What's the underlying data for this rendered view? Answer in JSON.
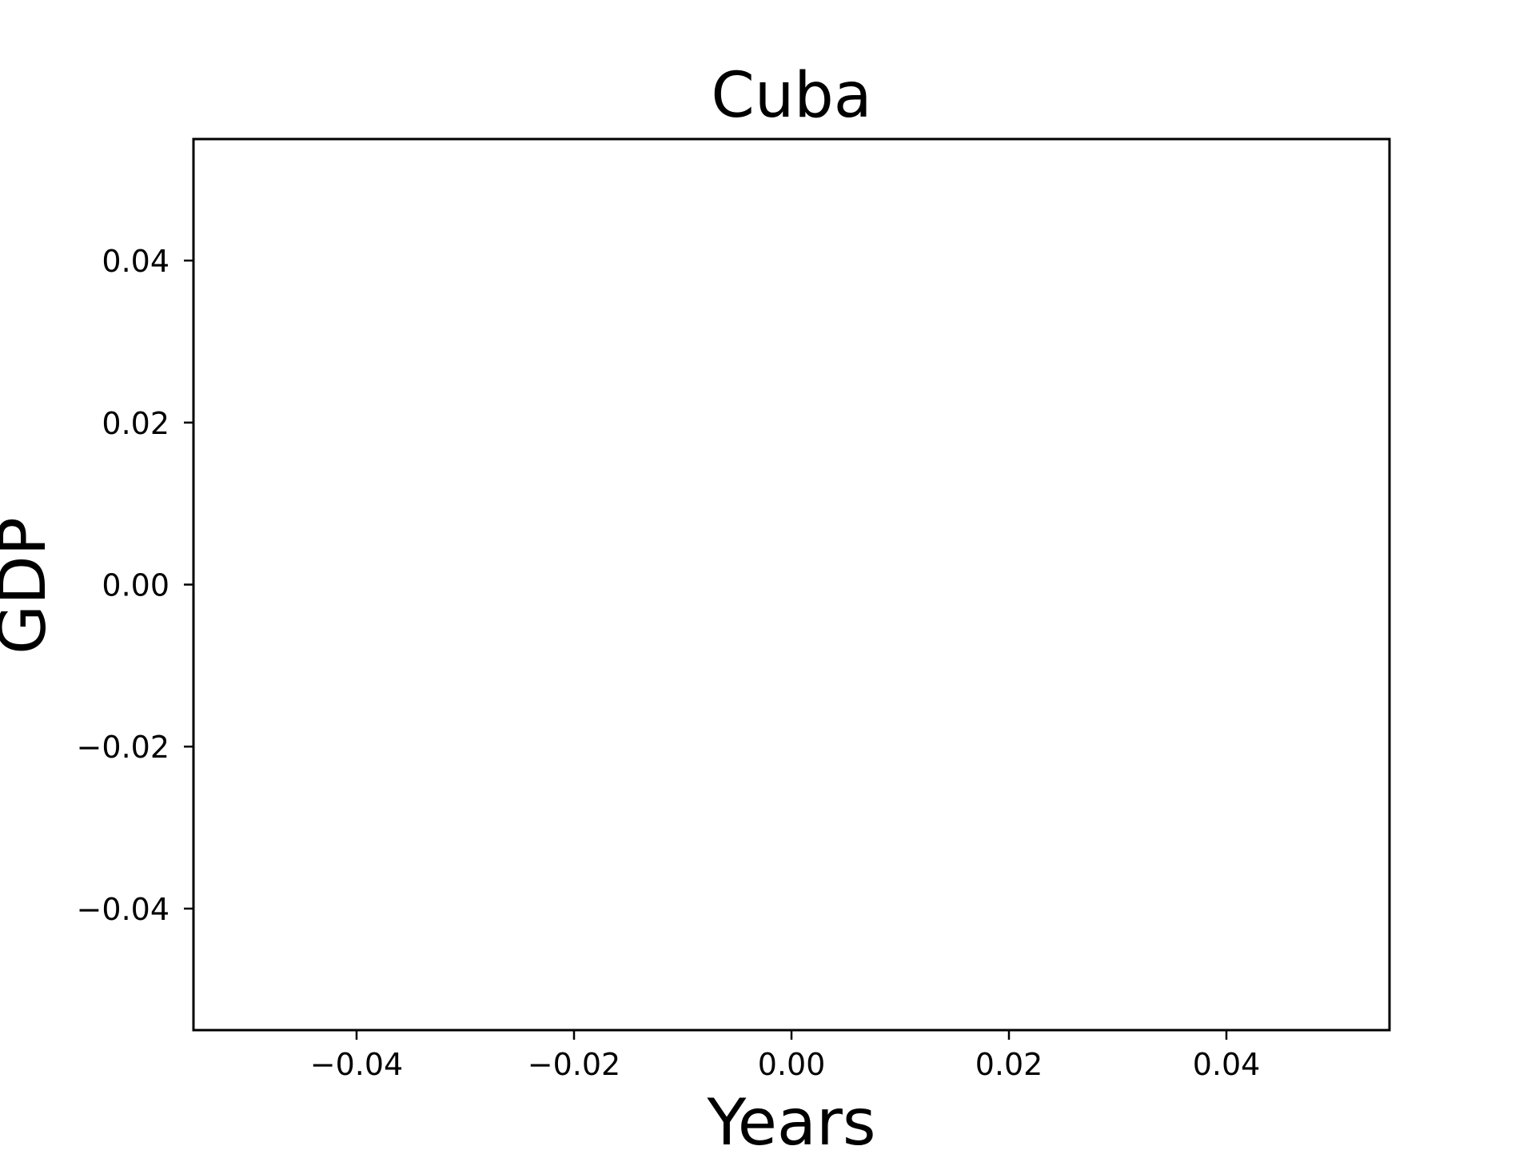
{
  "chart_data": {
    "type": "line",
    "title": "Cuba",
    "xlabel": "Years",
    "ylabel": "GDP",
    "xlim": [
      -0.055,
      0.055
    ],
    "ylim": [
      -0.055,
      0.055
    ],
    "xticks": [
      -0.04,
      -0.02,
      0.0,
      0.02,
      0.04
    ],
    "yticks": [
      -0.04,
      -0.02,
      0.0,
      0.02,
      0.04
    ],
    "xtick_labels": [
      "−0.04",
      "−0.02",
      "0.00",
      "0.02",
      "0.04"
    ],
    "ytick_labels": [
      "−0.04",
      "−0.02",
      "0.00",
      "0.02",
      "0.04"
    ],
    "series": [],
    "grid": false,
    "legend": "none"
  }
}
